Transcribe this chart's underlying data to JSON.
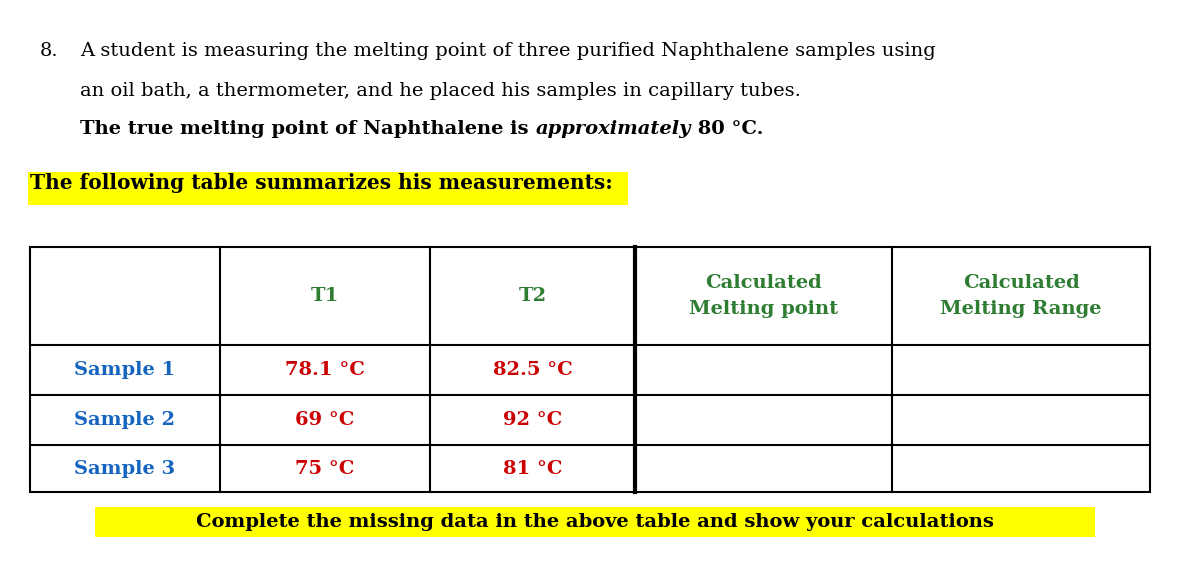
{
  "background_color": "#ffffff",
  "question_number": "8.",
  "question_text_line1": "A student is measuring the melting point of three purified Naphthalene samples using",
  "question_text_line2": "an oil bath, a thermometer, and he placed his samples in capillary tubes.",
  "question_text_line3_bold": "The true melting point of Naphthalene is ",
  "question_text_line3_italic": "approximately",
  "question_text_line3_end": " 80 °C.",
  "highlighted_sentence": "The following table summarizes his measurements:",
  "highlight_color": "#FFFF00",
  "table_header_col2": "T1",
  "table_header_col3": "T2",
  "table_header_col4_line1": "Calculated",
  "table_header_col4_line2": "Melting point",
  "table_header_col5_line1": "Calculated",
  "table_header_col5_line2": "Melting Range",
  "table_rows": [
    [
      "Sample 1",
      "78.1 °C",
      "82.5 °C",
      "",
      ""
    ],
    [
      "Sample 2",
      "69 °C",
      "92 °C",
      "",
      ""
    ],
    [
      "Sample 3",
      "75 °C",
      "81 °C",
      "",
      ""
    ]
  ],
  "sample_color": "#1565C0",
  "t_value_color": "#CC0000",
  "header_t_color": "#2E7D32",
  "header_calc_color": "#2E7D32",
  "footer_text": "Complete the missing data in the above table and show your calculations",
  "footer_highlight": "#FFFF00",
  "footer_text_color": "#000000",
  "normal_text_color": "#000000",
  "table_border_color": "#000000",
  "fontsize_body": 14,
  "fontsize_table": 14,
  "fontsize_footer": 14
}
